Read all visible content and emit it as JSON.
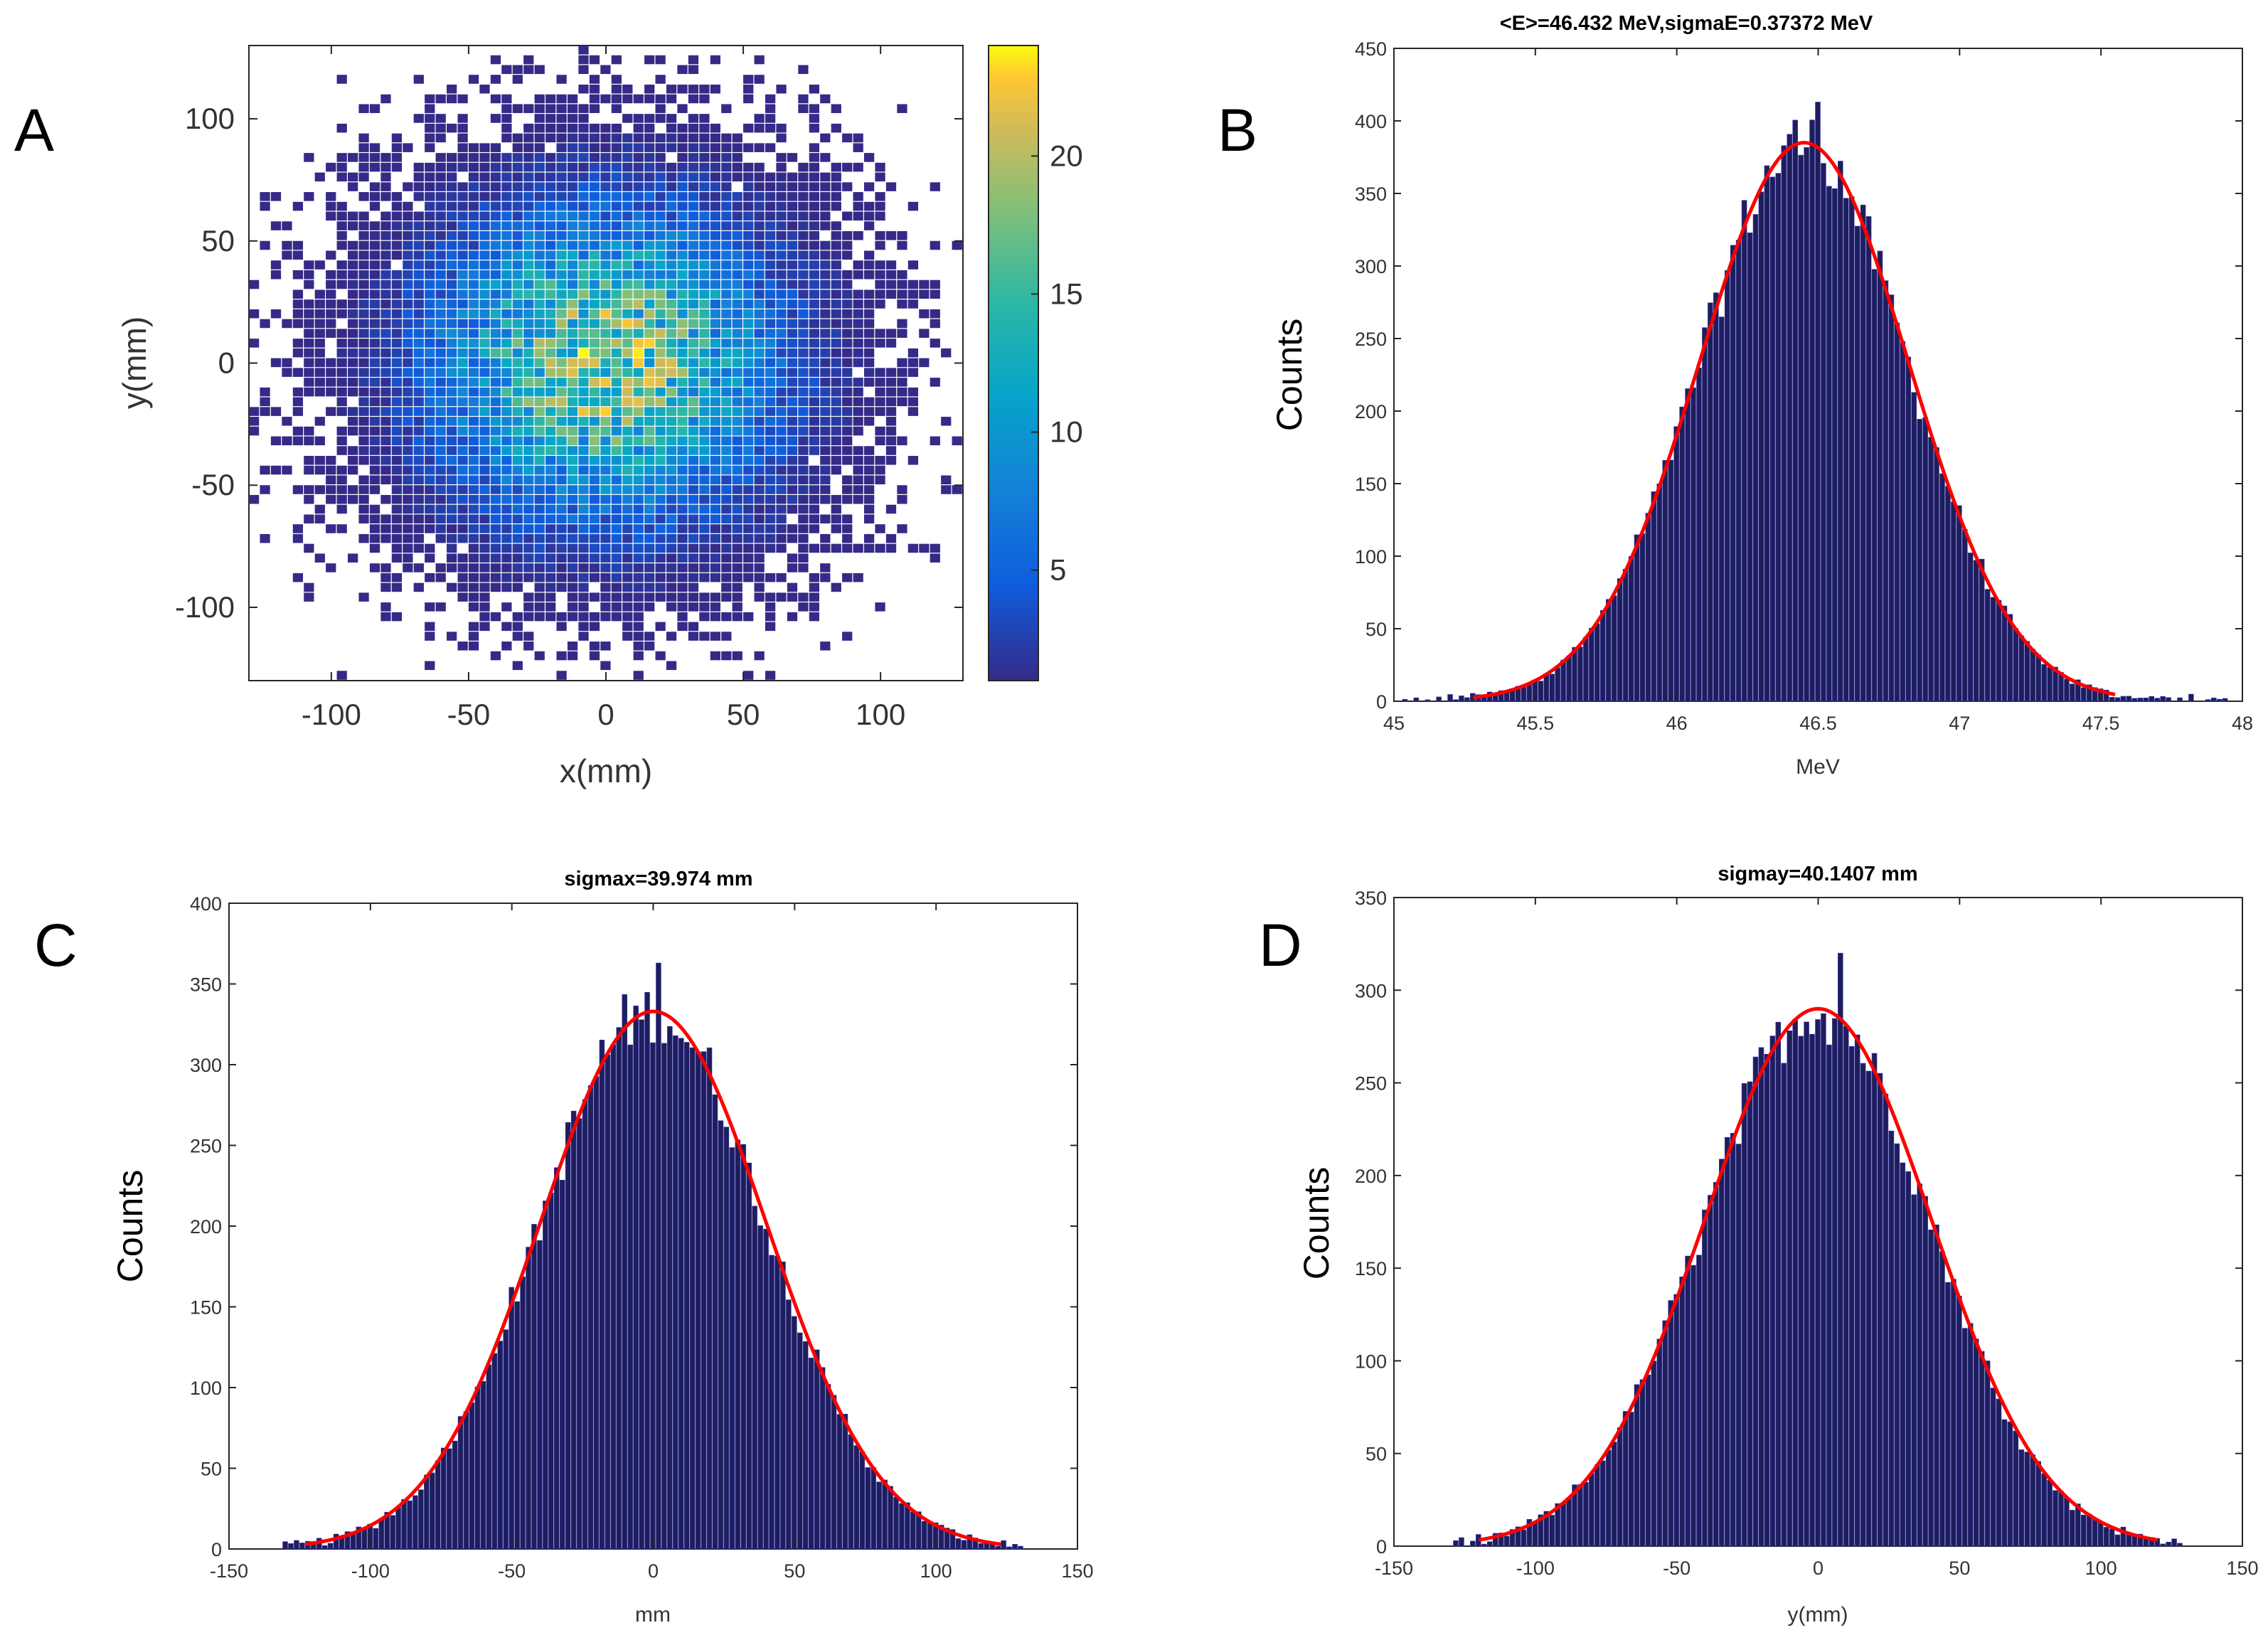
{
  "panels": {
    "a": "A",
    "b": "B",
    "c": "C",
    "d": "D"
  },
  "colors": {
    "bar_fill": "#1e1e5c",
    "bar_edge": "#3b3bb0",
    "fit_line": "#ff0000",
    "scatter_low": "#352a87",
    "scatter_mid": "#1aa6c4",
    "scatter_high": "#f9d02b"
  },
  "chart_data": [
    {
      "id": "A",
      "type": "heatmap",
      "title": "",
      "xlabel": "x(mm)",
      "ylabel": "y(mm)",
      "xlim": [
        -130,
        130
      ],
      "ylim": [
        -130,
        130
      ],
      "xticks": [
        -100,
        -50,
        0,
        50,
        100
      ],
      "yticks": [
        -100,
        -50,
        0,
        50,
        100
      ],
      "xtick_labels": [
        "-100",
        "-50",
        "0",
        "50",
        "100"
      ],
      "ytick_labels": [
        "-100",
        "-50",
        "0",
        "50",
        "100"
      ],
      "colorbar": {
        "min": 1,
        "max": 24,
        "ticks": [
          5,
          10,
          15,
          20
        ],
        "tick_labels": [
          "5",
          "10",
          "15",
          "20"
        ]
      },
      "distribution": {
        "center": [
          0,
          0
        ],
        "sigma_mm": 40,
        "peak_count": 24
      }
    },
    {
      "id": "B",
      "type": "bar",
      "title": "<E>=46.432 MeV,sigmaE=0.37372 MeV",
      "xlabel": "MeV",
      "ylabel": "Counts",
      "xlim": [
        45,
        48
      ],
      "ylim": [
        0,
        450
      ],
      "xticks": [
        45,
        45.5,
        46,
        46.5,
        47,
        47.5,
        48
      ],
      "xtick_labels": [
        "45",
        "45.5",
        "46",
        "46.5",
        "47",
        "47.5",
        "48"
      ],
      "yticks": [
        0,
        50,
        100,
        150,
        200,
        250,
        300,
        350,
        400,
        450
      ],
      "ytick_labels": [
        "0",
        "50",
        "100",
        "150",
        "200",
        "250",
        "300",
        "350",
        "400",
        "450"
      ],
      "bin_range": [
        45.02,
        47.94
      ],
      "bin_width": 0.02,
      "fit": {
        "type": "gaussian",
        "mu": 46.45,
        "sigma": 0.37,
        "amplitude": 385,
        "range": [
          45.28,
          47.55
        ]
      },
      "noted_peaks": [
        {
          "x": 46.51,
          "y": 413
        }
      ]
    },
    {
      "id": "C",
      "type": "bar",
      "title": "sigmax=39.974 mm",
      "xlabel": "mm",
      "ylabel": "Counts",
      "xlim": [
        -150,
        150
      ],
      "ylim": [
        0,
        400
      ],
      "xticks": [
        -150,
        -100,
        -50,
        0,
        50,
        100,
        150
      ],
      "xtick_labels": [
        "-150",
        "-100",
        "-50",
        "0",
        "50",
        "100",
        "150"
      ],
      "yticks": [
        0,
        50,
        100,
        150,
        200,
        250,
        300,
        350,
        400
      ],
      "ytick_labels": [
        "0",
        "50",
        "100",
        "150",
        "200",
        "250",
        "300",
        "350",
        "400"
      ],
      "bin_range": [
        -130,
        130
      ],
      "bin_width": 2,
      "fit": {
        "type": "gaussian",
        "mu": 0,
        "sigma": 39.974,
        "amplitude": 333,
        "range": [
          -123,
          123
        ]
      },
      "noted_peaks": [
        {
          "x": 2,
          "y": 363
        }
      ]
    },
    {
      "id": "D",
      "type": "bar",
      "title": "sigmay=40.1407 mm",
      "xlabel": "y(mm)",
      "ylabel": "Counts",
      "xlim": [
        -150,
        150
      ],
      "ylim": [
        0,
        350
      ],
      "xticks": [
        -150,
        -100,
        -50,
        0,
        50,
        100,
        150
      ],
      "xtick_labels": [
        "-150",
        "-100",
        "-50",
        "0",
        "50",
        "100",
        "150"
      ],
      "yticks": [
        0,
        50,
        100,
        150,
        200,
        250,
        300,
        350
      ],
      "ytick_labels": [
        "0",
        "50",
        "100",
        "150",
        "200",
        "250",
        "300",
        "350"
      ],
      "bin_range": [
        -128,
        128
      ],
      "bin_width": 2,
      "fit": {
        "type": "gaussian",
        "mu": 0,
        "sigma": 40.1407,
        "amplitude": 290,
        "range": [
          -120,
          120
        ]
      },
      "noted_peaks": [
        {
          "x": 8,
          "y": 320
        }
      ]
    }
  ]
}
